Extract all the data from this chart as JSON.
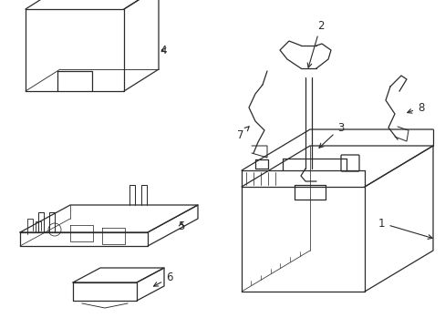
{
  "background_color": "#ffffff",
  "line_color": "#2a2a2a",
  "line_width": 0.9,
  "label_fontsize": 8.5,
  "figsize": [
    4.89,
    3.6
  ],
  "dpi": 100
}
